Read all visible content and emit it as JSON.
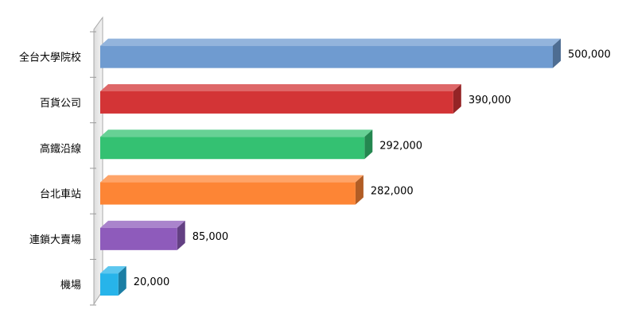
{
  "chart_data": {
    "type": "bar",
    "orientation": "horizontal",
    "style": "3d",
    "categories": [
      "全台大學院校",
      "百貨公司",
      "高鐵沿線",
      "台北車站",
      "連鎖大賣場",
      "機場"
    ],
    "values": [
      500000,
      390000,
      292000,
      282000,
      85000,
      20000
    ],
    "value_labels": [
      "500,000",
      "390,000",
      "292,000",
      "282,000",
      "85,000",
      "20,000"
    ],
    "colors": [
      "#6f9bd0",
      "#d33436",
      "#34c172",
      "#fd8535",
      "#8e5bbb",
      "#27b4ea"
    ],
    "xlim": [
      0,
      500000
    ],
    "grid": false,
    "legend": "none"
  }
}
